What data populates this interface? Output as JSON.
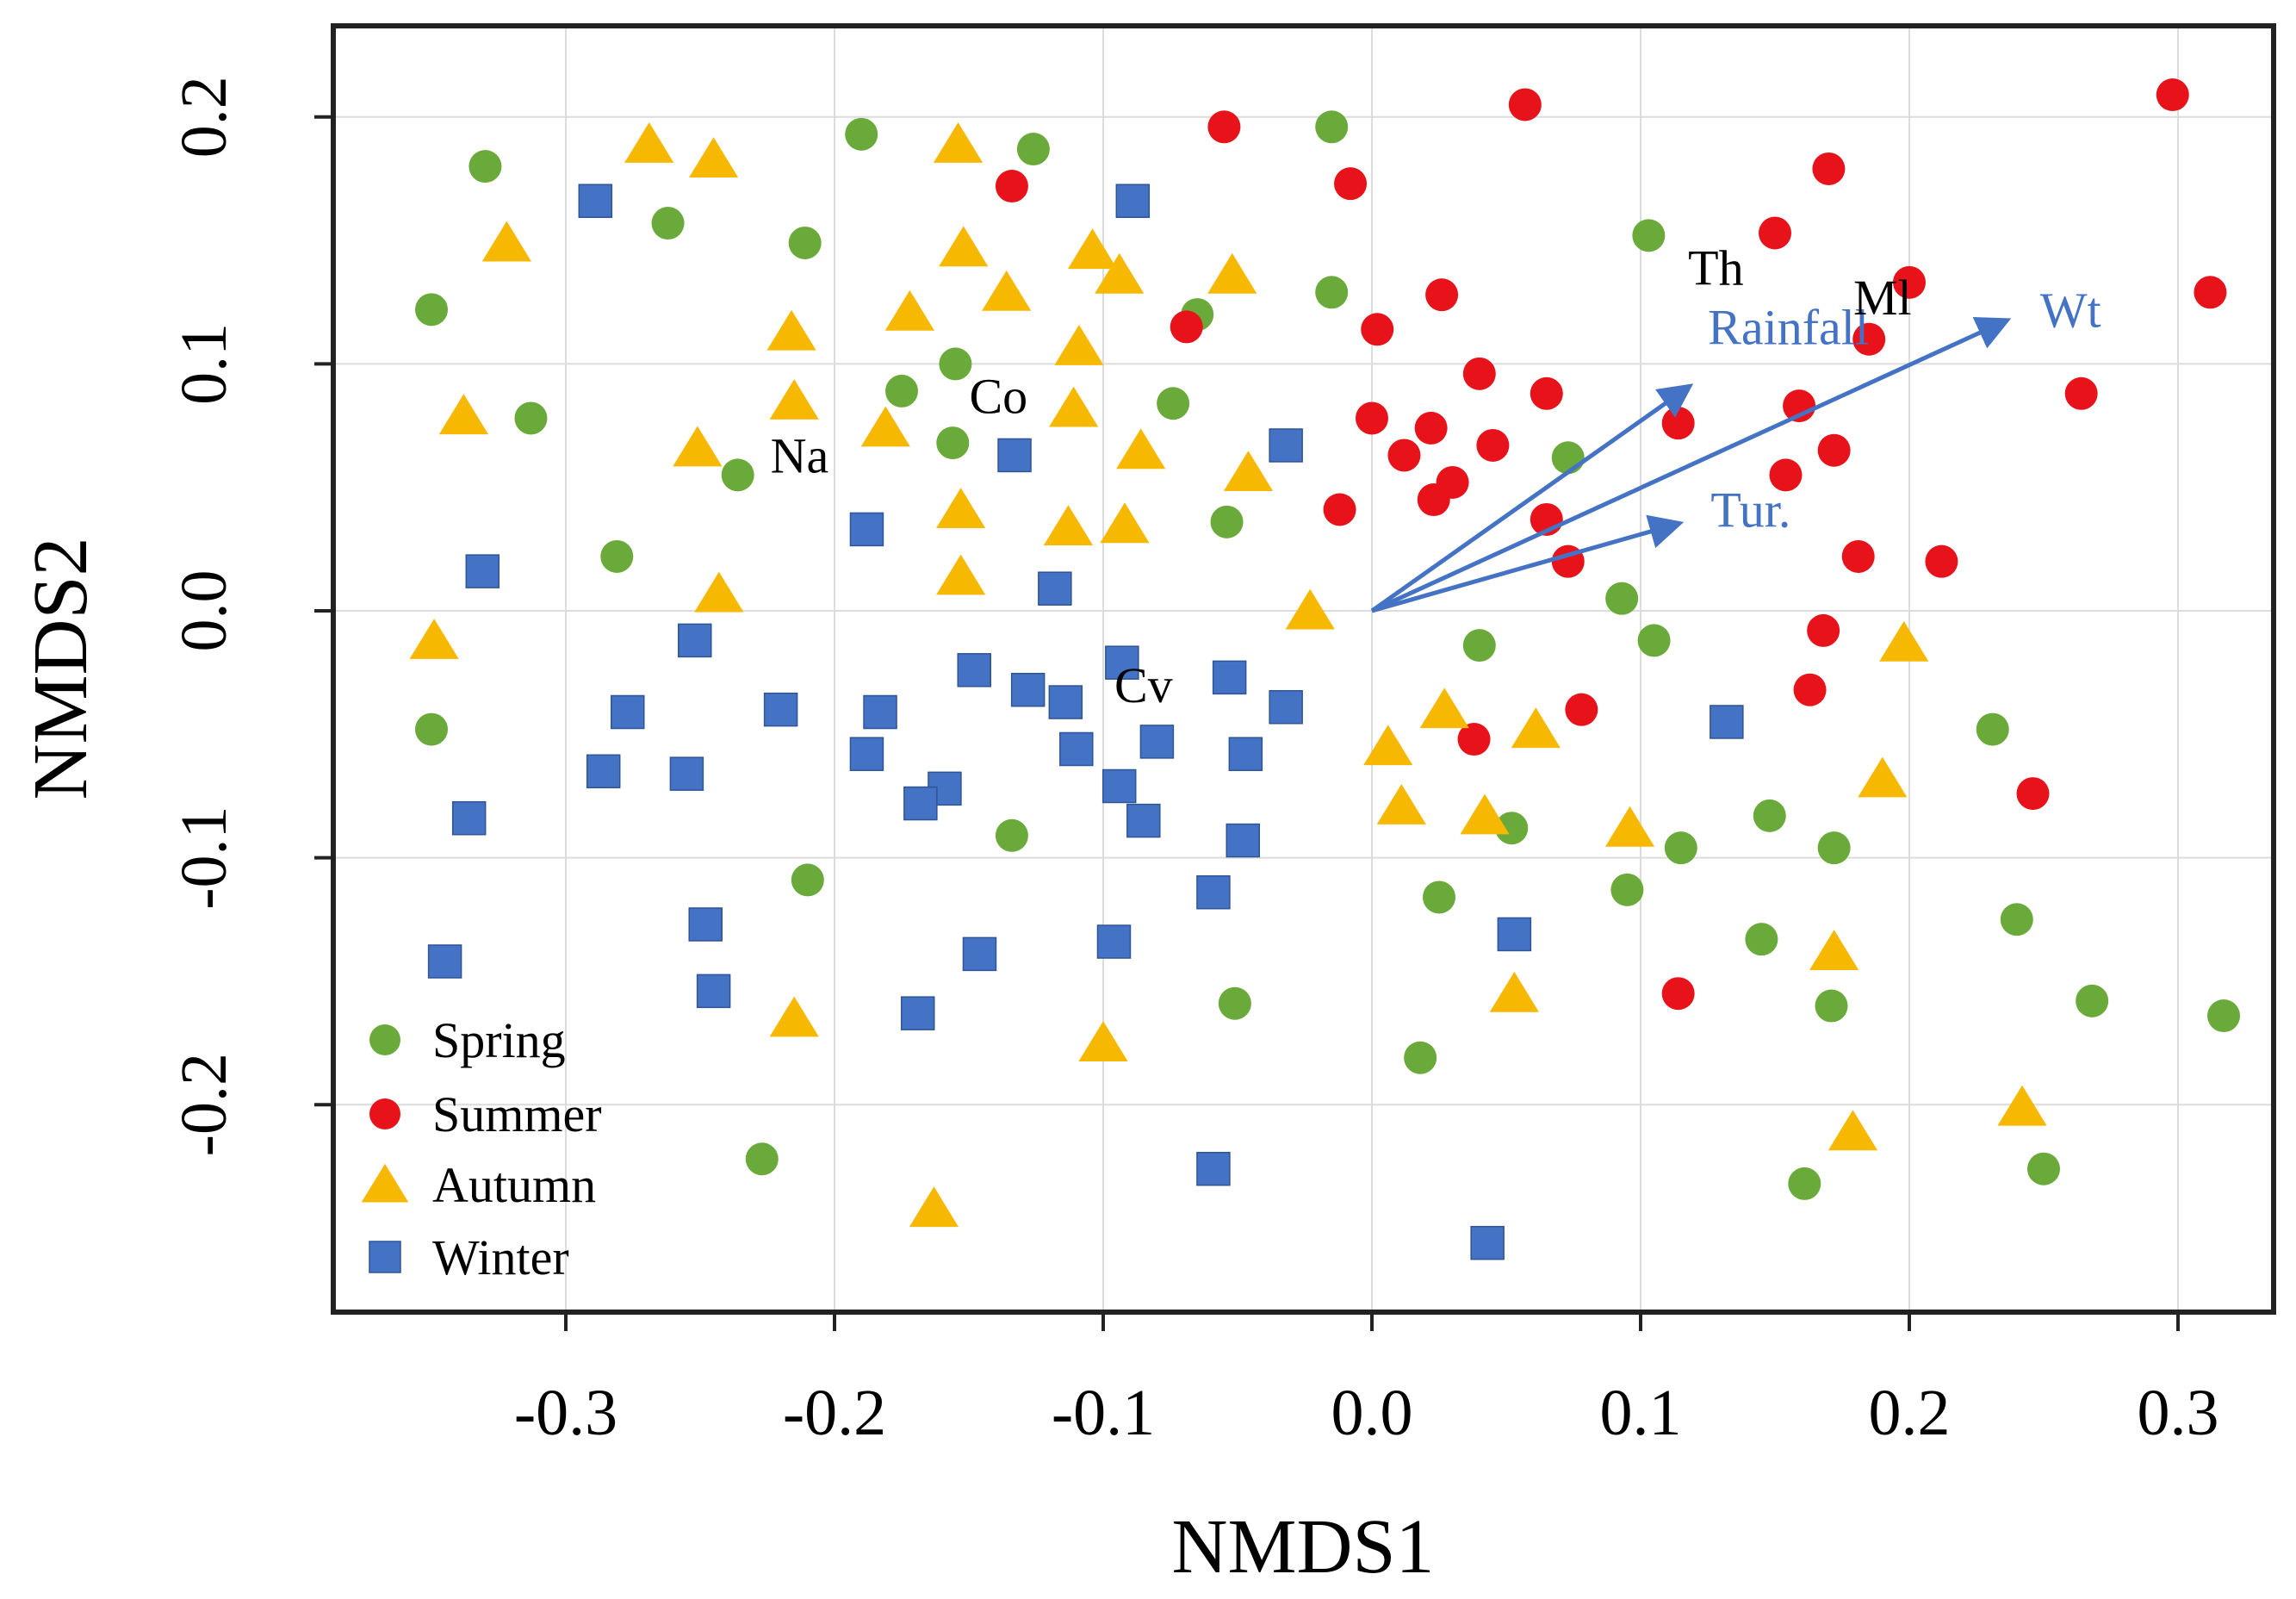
{
  "chart_data": {
    "type": "scatter",
    "title": "",
    "xlabel": "NMDS1",
    "ylabel": "NMDS2",
    "xlim": [
      -0.39,
      0.34
    ],
    "ylim": [
      -0.285,
      0.235
    ],
    "xticks": [
      -0.3,
      -0.2,
      -0.1,
      0.0,
      0.1,
      0.2,
      0.3
    ],
    "yticks": [
      -0.2,
      -0.1,
      0.0,
      0.1,
      0.2
    ],
    "xtick_labels": [
      "-0.3",
      "-0.2",
      "-0.1",
      "0.0",
      "0.1",
      "0.2",
      "0.3"
    ],
    "ytick_labels": [
      "-0.2",
      "-0.1",
      "0.0",
      "0.1",
      "0.2"
    ],
    "grid": true,
    "legend": {
      "placement": "bottom-left",
      "entries": [
        "Spring",
        "Summer",
        "Autumn",
        "Winter"
      ]
    },
    "series": [
      {
        "name": "Spring",
        "marker": "circle",
        "color": "#6aaa3a",
        "points": [
          [
            -0.33,
            0.18
          ],
          [
            -0.35,
            0.122
          ],
          [
            -0.313,
            0.078
          ],
          [
            -0.262,
            0.157
          ],
          [
            -0.19,
            0.193
          ],
          [
            -0.211,
            0.149
          ],
          [
            -0.126,
            0.187
          ],
          [
            -0.175,
            0.089
          ],
          [
            -0.155,
            0.1
          ],
          [
            -0.156,
            0.068
          ],
          [
            -0.236,
            0.055
          ],
          [
            -0.281,
            0.022
          ],
          [
            -0.074,
            0.084
          ],
          [
            -0.065,
            0.12
          ],
          [
            -0.054,
            0.036
          ],
          [
            -0.015,
            0.196
          ],
          [
            -0.015,
            0.129
          ],
          [
            0.103,
            0.152
          ],
          [
            0.073,
            0.062
          ],
          [
            0.093,
            0.005
          ],
          [
            0.105,
            -0.012
          ],
          [
            0.04,
            -0.014
          ],
          [
            0.052,
            -0.088
          ],
          [
            -0.134,
            -0.091
          ],
          [
            -0.35,
            -0.048
          ],
          [
            -0.21,
            -0.109
          ],
          [
            0.115,
            -0.096
          ],
          [
            0.148,
            -0.083
          ],
          [
            0.172,
            -0.096
          ],
          [
            0.231,
            -0.048
          ],
          [
            0.24,
            -0.125
          ],
          [
            0.145,
            -0.133
          ],
          [
            0.095,
            -0.113
          ],
          [
            0.025,
            -0.116
          ],
          [
            0.171,
            -0.16
          ],
          [
            0.268,
            -0.158
          ],
          [
            0.317,
            -0.164
          ],
          [
            -0.051,
            -0.159
          ],
          [
            0.018,
            -0.181
          ],
          [
            -0.227,
            -0.222
          ],
          [
            0.161,
            -0.232
          ],
          [
            0.25,
            -0.226
          ]
        ]
      },
      {
        "name": "Summer",
        "marker": "circle",
        "color": "#e8131a",
        "points": [
          [
            -0.055,
            0.196
          ],
          [
            0.057,
            0.205
          ],
          [
            -0.134,
            0.172
          ],
          [
            -0.008,
            0.173
          ],
          [
            0.17,
            0.179
          ],
          [
            0.298,
            0.209
          ],
          [
            0.15,
            0.153
          ],
          [
            0.2,
            0.133
          ],
          [
            0.312,
            0.129
          ],
          [
            0.026,
            0.128
          ],
          [
            0.002,
            0.114
          ],
          [
            -0.069,
            0.115
          ],
          [
            0.185,
            0.11
          ],
          [
            0.04,
            0.096
          ],
          [
            0.065,
            0.088
          ],
          [
            0.264,
            0.088
          ],
          [
            0.159,
            0.083
          ],
          [
            0.0,
            0.078
          ],
          [
            0.022,
            0.074
          ],
          [
            0.114,
            0.076
          ],
          [
            0.045,
            0.067
          ],
          [
            0.012,
            0.063
          ],
          [
            0.172,
            0.065
          ],
          [
            0.154,
            0.055
          ],
          [
            0.03,
            0.052
          ],
          [
            0.023,
            0.045
          ],
          [
            -0.012,
            0.041
          ],
          [
            0.065,
            0.037
          ],
          [
            0.073,
            0.02
          ],
          [
            0.181,
            0.022
          ],
          [
            0.212,
            0.02
          ],
          [
            0.168,
            -0.008
          ],
          [
            0.163,
            -0.032
          ],
          [
            0.078,
            -0.04
          ],
          [
            0.038,
            -0.052
          ],
          [
            0.246,
            -0.074
          ],
          [
            0.114,
            -0.155
          ]
        ]
      },
      {
        "name": "Autumn",
        "marker": "triangle",
        "color": "#f6b800",
        "points": [
          [
            -0.269,
            0.189
          ],
          [
            -0.245,
            0.183
          ],
          [
            -0.154,
            0.189
          ],
          [
            -0.322,
            0.149
          ],
          [
            -0.152,
            0.147
          ],
          [
            -0.104,
            0.146
          ],
          [
            -0.052,
            0.136
          ],
          [
            -0.094,
            0.136
          ],
          [
            -0.136,
            0.129
          ],
          [
            -0.172,
            0.121
          ],
          [
            -0.216,
            0.113
          ],
          [
            -0.109,
            0.107
          ],
          [
            -0.215,
            0.085
          ],
          [
            -0.111,
            0.082
          ],
          [
            -0.338,
            0.079
          ],
          [
            -0.181,
            0.074
          ],
          [
            -0.251,
            0.066
          ],
          [
            -0.086,
            0.065
          ],
          [
            -0.046,
            0.056
          ],
          [
            -0.153,
            0.041
          ],
          [
            -0.113,
            0.034
          ],
          [
            -0.092,
            0.035
          ],
          [
            -0.153,
            0.014
          ],
          [
            -0.243,
            0.007
          ],
          [
            -0.023,
            0.0
          ],
          [
            -0.349,
            -0.012
          ],
          [
            0.198,
            -0.013
          ],
          [
            0.027,
            -0.04
          ],
          [
            0.061,
            -0.048
          ],
          [
            0.006,
            -0.055
          ],
          [
            0.19,
            -0.068
          ],
          [
            0.011,
            -0.079
          ],
          [
            0.042,
            -0.083
          ],
          [
            0.096,
            -0.088
          ],
          [
            0.172,
            -0.138
          ],
          [
            -0.215,
            -0.165
          ],
          [
            0.053,
            -0.155
          ],
          [
            -0.1,
            -0.175
          ],
          [
            0.242,
            -0.201
          ],
          [
            0.179,
            -0.211
          ],
          [
            -0.163,
            -0.242
          ]
        ]
      },
      {
        "name": "Winter",
        "marker": "square",
        "color": "#4472c4",
        "points": [
          [
            -0.289,
            0.166
          ],
          [
            -0.089,
            0.166
          ],
          [
            -0.032,
            0.067
          ],
          [
            -0.133,
            0.063
          ],
          [
            -0.188,
            0.033
          ],
          [
            -0.331,
            0.016
          ],
          [
            -0.118,
            0.009
          ],
          [
            -0.252,
            -0.012
          ],
          [
            -0.093,
            -0.021
          ],
          [
            -0.148,
            -0.024
          ],
          [
            -0.053,
            -0.027
          ],
          [
            -0.128,
            -0.032
          ],
          [
            -0.114,
            -0.037
          ],
          [
            -0.032,
            -0.039
          ],
          [
            -0.277,
            -0.041
          ],
          [
            -0.22,
            -0.04
          ],
          [
            -0.183,
            -0.041
          ],
          [
            0.132,
            -0.045
          ],
          [
            -0.08,
            -0.053
          ],
          [
            -0.11,
            -0.056
          ],
          [
            -0.188,
            -0.058
          ],
          [
            -0.047,
            -0.058
          ],
          [
            -0.286,
            -0.065
          ],
          [
            -0.255,
            -0.066
          ],
          [
            -0.094,
            -0.071
          ],
          [
            -0.159,
            -0.072
          ],
          [
            -0.168,
            -0.078
          ],
          [
            -0.085,
            -0.085
          ],
          [
            -0.336,
            -0.084
          ],
          [
            -0.048,
            -0.093
          ],
          [
            -0.059,
            -0.114
          ],
          [
            -0.248,
            -0.127
          ],
          [
            -0.096,
            -0.134
          ],
          [
            0.053,
            -0.131
          ],
          [
            -0.146,
            -0.139
          ],
          [
            -0.345,
            -0.142
          ],
          [
            -0.245,
            -0.154
          ],
          [
            -0.169,
            -0.163
          ],
          [
            -0.059,
            -0.226
          ],
          [
            0.043,
            -0.256
          ]
        ]
      }
    ],
    "species_labels": [
      {
        "text": "Na",
        "x": -0.213,
        "y": 0.056
      },
      {
        "text": "Co",
        "x": -0.139,
        "y": 0.08
      },
      {
        "text": "Cv",
        "x": -0.085,
        "y": -0.037
      },
      {
        "text": "Th",
        "x": 0.128,
        "y": 0.132
      },
      {
        "text": "Ml",
        "x": 0.19,
        "y": 0.12
      }
    ],
    "vectors": [
      {
        "name": "Rainfall",
        "x": 0.117,
        "y": 0.09,
        "label_x": 0.155,
        "label_y": 0.108
      },
      {
        "name": "Wt",
        "x": 0.235,
        "y": 0.117,
        "label_x": 0.26,
        "label_y": 0.115
      },
      {
        "name": "Tur.",
        "x": 0.113,
        "y": 0.035,
        "label_x": 0.141,
        "label_y": 0.034
      }
    ],
    "vector_color": "#4472c4"
  }
}
